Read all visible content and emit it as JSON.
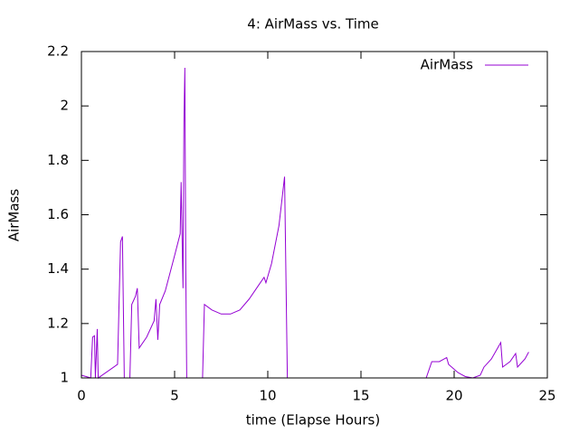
{
  "chart_data": {
    "type": "line",
    "title": "4: AirMass vs. Time",
    "x_label": "time (Elapse Hours)",
    "y_label": "AirMass",
    "x": [
      0,
      0.5,
      0.6,
      0.7,
      0.75,
      0.85,
      0.9,
      1.94,
      2.1,
      2.2,
      2.3,
      2.6,
      2.7,
      2.9,
      3.0,
      3.1,
      3.5,
      3.9,
      4.0,
      4.1,
      4.2,
      4.5,
      5.0,
      5.3,
      5.35,
      5.45,
      5.5,
      5.55,
      5.6,
      5.65,
      6.5,
      6.6,
      7,
      7.5,
      8,
      8.5,
      9,
      9.5,
      9.8,
      9.9,
      10.2,
      10.6,
      10.9,
      11.05,
      18.5,
      18.8,
      19.2,
      19.6,
      19.7,
      20.2,
      20.6,
      21.0,
      21.4,
      21.6,
      22.0,
      22.5,
      22.6,
      23.0,
      23.3,
      23.4,
      23.8,
      24.0
    ],
    "series": [
      {
        "name": "AirMass",
        "color": "#9400d3",
        "values": [
          1.01,
          1.0,
          1.15,
          1.155,
          1.0,
          1.18,
          1.0,
          1.05,
          1.5,
          1.52,
          1.0,
          1.0,
          1.27,
          1.3,
          1.33,
          1.11,
          1.15,
          1.21,
          1.29,
          1.14,
          1.27,
          1.32,
          1.45,
          1.53,
          1.72,
          1.33,
          1.94,
          2.14,
          1.4,
          1.0,
          1.0,
          1.27,
          1.25,
          1.235,
          1.235,
          1.25,
          1.29,
          1.34,
          1.37,
          1.35,
          1.42,
          1.56,
          1.74,
          1.0,
          1.0,
          1.06,
          1.06,
          1.075,
          1.05,
          1.02,
          1.005,
          1.0,
          1.01,
          1.04,
          1.07,
          1.13,
          1.04,
          1.06,
          1.09,
          1.04,
          1.07,
          1.095
        ]
      }
    ],
    "xlim": [
      0,
      25
    ],
    "xticks": [
      0,
      5,
      10,
      15,
      20,
      25
    ],
    "ylim": [
      1,
      2.2
    ],
    "yticks": [
      1,
      1.2,
      1.4,
      1.6,
      1.8,
      2,
      2.2
    ],
    "legend": "top-right"
  }
}
